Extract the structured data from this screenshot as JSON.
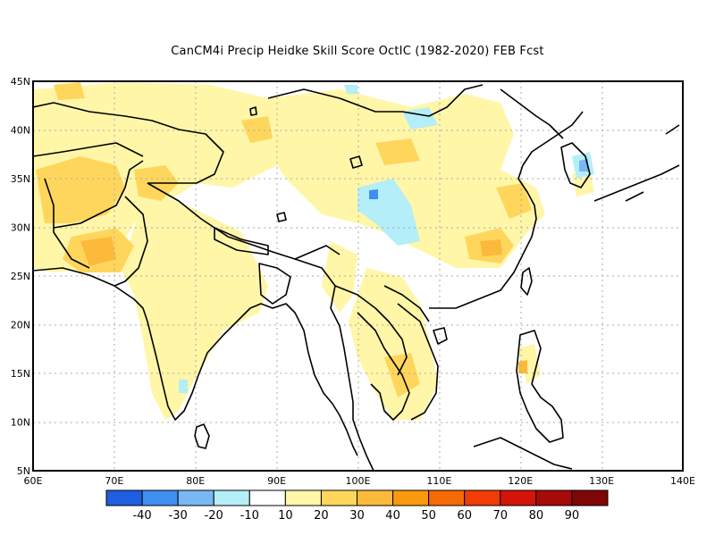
{
  "title": "CanCM4i Precip Heidke Skill Score OctIC (1982-2020) FEB Fcst",
  "map": {
    "lon_range": [
      60,
      140
    ],
    "lat_range": [
      5,
      45
    ],
    "lat_ticks": [
      "45N",
      "40N",
      "35N",
      "30N",
      "25N",
      "20N",
      "15N",
      "10N",
      "5N"
    ],
    "lon_ticks": [
      "60E",
      "70E",
      "80E",
      "90E",
      "100E",
      "110E",
      "120E",
      "130E",
      "140E"
    ],
    "gridlines": "dotted",
    "colorbar": {
      "colors": [
        "#1f5ee0",
        "#3f8ef0",
        "#78b8f4",
        "#b4eef8",
        "#ffffff",
        "#fff6a8",
        "#ffd65c",
        "#fcba3a",
        "#f99a0c",
        "#f66b06",
        "#f13c06",
        "#d41409",
        "#a60a0a",
        "#7e0606"
      ],
      "labels": [
        "-40",
        "-30",
        "-20",
        "-10",
        "10",
        "20",
        "30",
        "40",
        "50",
        "60",
        "70",
        "80",
        "90"
      ]
    },
    "fields": {
      "c20": "#fff6a8",
      "c30": "#ffd65c",
      "c40": "#fcba3a",
      "cn10": "#b4eef8",
      "cn20": "#78b8f4"
    }
  }
}
